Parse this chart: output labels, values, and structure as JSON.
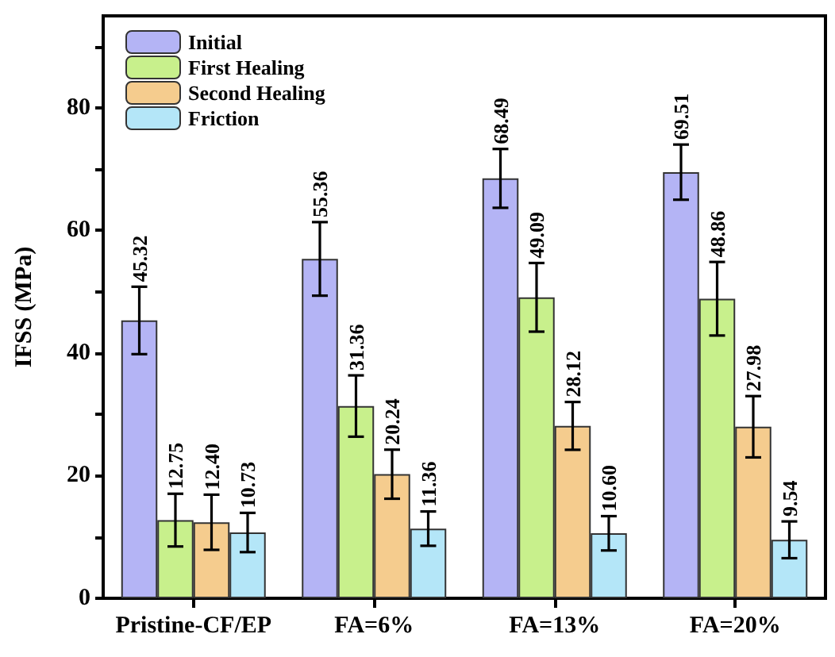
{
  "chart_data": {
    "type": "bar",
    "ylabel": "IFSS (MPa)",
    "categories": [
      "Pristine-CF/EP",
      "FA=6%",
      "FA=13%",
      "FA=20%"
    ],
    "series": [
      {
        "name": "Initial",
        "color": "#b4b4f5",
        "values": [
          45.32,
          55.36,
          68.49,
          69.51
        ],
        "errors": [
          5.5,
          6,
          4.8,
          4.5
        ],
        "value_labels": [
          "45.32",
          "55.36",
          "68.49",
          "69.51"
        ]
      },
      {
        "name": "First Healing",
        "color": "#c8f08c",
        "values": [
          12.75,
          31.36,
          49.09,
          48.86
        ],
        "errors": [
          4.3,
          5,
          5.6,
          6
        ],
        "value_labels": [
          "12.75",
          "31.36",
          "49.09",
          "48.86"
        ]
      },
      {
        "name": "Second Healing",
        "color": "#f5cc8e",
        "values": [
          12.4,
          20.24,
          28.12,
          27.98
        ],
        "errors": [
          4.5,
          4,
          3.9,
          5
        ],
        "value_labels": [
          "12.40",
          "20.24",
          "28.12",
          "27.98"
        ]
      },
      {
        "name": "Friction",
        "color": "#b4e6f8",
        "values": [
          10.73,
          11.36,
          10.6,
          9.54
        ],
        "errors": [
          3.2,
          2.8,
          2.8,
          3
        ],
        "value_labels": [
          "10.73",
          "11.36",
          "10.60",
          "9.54"
        ]
      }
    ],
    "ylim": [
      0,
      95
    ],
    "yticks": [
      0,
      {
        "value": 10,
        "label": null
      },
      20,
      {
        "value": 30,
        "label": null
      },
      40,
      {
        "value": 50,
        "label": null
      },
      60,
      {
        "value": 70,
        "label": null
      },
      80,
      {
        "value": 90,
        "label": null
      }
    ],
    "grid": false,
    "legend": "top left"
  }
}
